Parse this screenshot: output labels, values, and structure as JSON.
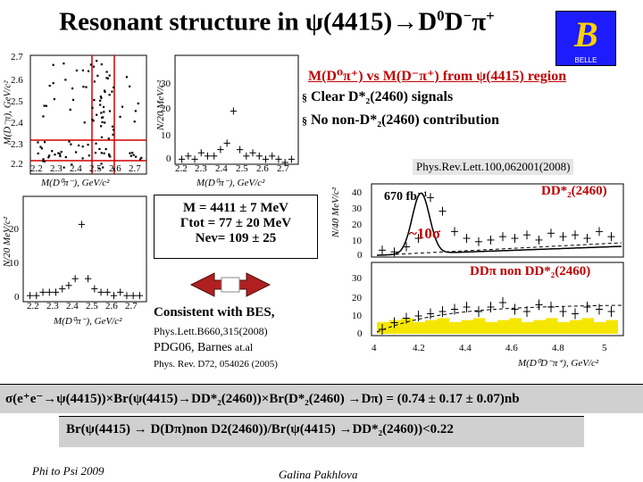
{
  "slide": {
    "title_a": "Resonant structure in ",
    "title_psi": "ψ",
    "title_b": "(4415)→D",
    "title_sup0": "0",
    "title_c": "D",
    "title_supm": "−",
    "title_pi": "π",
    "title_supp": "+"
  },
  "logo": {
    "letter": "B",
    "name": "BELLE"
  },
  "headline": "M(D⁰π⁺) vs M(D⁻π⁺) from ψ(4415) region",
  "bullets": [
    {
      "marker": "§",
      "text": "Clear D*₂(2460) signals"
    },
    {
      "marker": "§",
      "text": "No non-D*₂(2460) contribution"
    }
  ],
  "ref_prl": "Phys.Rev.Lett.100,062001(2008)",
  "fit_box": {
    "mass": "M = 4411 ± 7 MeV",
    "width": "Γtot = 77 ± 20 MeV",
    "nev": "Nev= 109 ± 25"
  },
  "bes_box": {
    "line1": "Consistent with BES,",
    "ref1": "Phys.Lett.B660,315(2008)",
    "pdg": "PDG06, Barnes",
    "etal": " at.al",
    "ref2": "Phys. Rev. D72, 054026 (2005)"
  },
  "lumi": "670 fb⁻¹",
  "signif": "~10σ",
  "label_signal": "DD*₂(2460)",
  "label_bkg": "DDπ non DD*₂(2460)",
  "formula": "σ(e⁺e⁻→ψ(4415))×Br(ψ(4415)→DD*₂(2460))×Br(D*₂(2460) →Dπ) = (0.74 ± 0.17 ± 0.07)nb",
  "br_limit": "Br(ψ(4415) → D(Dπ)non D2(2460))/Br(ψ(4415) →DD*₂(2460))<0.22",
  "footer_left": "Phi to Psi 2009",
  "footer_center": "Galina Pakhlova",
  "colors": {
    "yellow": "#f5e600",
    "signal": "#c00000",
    "logo_bg": "#1c1cff"
  },
  "chart_data": [
    {
      "type": "scatter",
      "xlabel": "M(D⁰π⁻), GeV/c²",
      "ylabel": "M(D⁻π), GeV/c²",
      "x_ticks": [
        "2.2",
        "2.3",
        "2.4",
        "2.5",
        "2.6",
        "2.7"
      ],
      "y_ticks": [
        "2.2",
        "2.3",
        "2.4",
        "2.5",
        "2.6",
        "2.7"
      ],
      "xlim": [
        2.2,
        2.75
      ],
      "ylim": [
        2.2,
        2.75
      ]
    },
    {
      "type": "bar",
      "xlabel": "M(D⁰π⁻), GeV/c²",
      "ylabel": "N/20 MeV/c²",
      "x_ticks": [
        "2.2",
        "2.3",
        "2.4",
        "2.5",
        "2.6",
        "2.7"
      ],
      "y_ticks": [
        "0",
        "10",
        "20",
        "30"
      ]
    },
    {
      "type": "bar",
      "xlabel": "M(D⁰π⁻), GeV/c²",
      "ylabel": "N/20 MeV/c²",
      "x_ticks": [
        "2.2",
        "2.3",
        "2.4",
        "2.5",
        "2.6",
        "2.7"
      ],
      "y_ticks": [
        "0",
        "10",
        "20"
      ]
    },
    {
      "type": "line",
      "xlabel": "M(D⁰D⁻π⁺), GeV/c²",
      "ylabel": "N/40 MeV/c²",
      "x_ticks": [
        "4",
        "4.2",
        "4.4",
        "4.6",
        "4.8",
        "5"
      ],
      "y_ticks_top": [
        "0",
        "10",
        "20",
        "30",
        "40"
      ],
      "y_ticks_bottom": [
        "0",
        "10",
        "20",
        "30"
      ],
      "xlim": [
        4.0,
        5.1
      ]
    }
  ]
}
